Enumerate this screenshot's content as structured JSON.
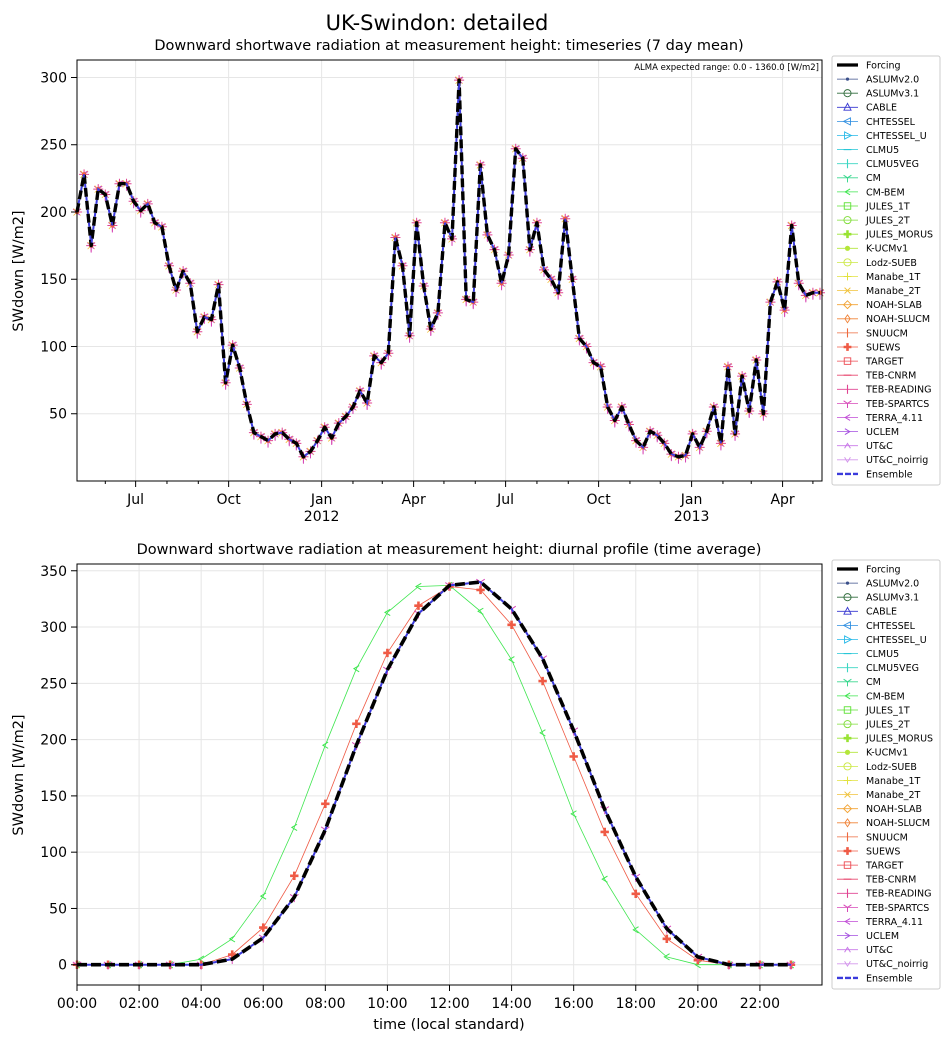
{
  "figure": {
    "title": "UK-Swindon: detailed"
  },
  "chart_data": [
    {
      "type": "line",
      "title": "Downward shortwave radiation at measurement height: timeseries (7 day mean)",
      "xlabel": "",
      "ylabel": "SWdown [W/m2]",
      "annotation": "ALMA expected range: 0.0 - 1360.0 [W/m2]",
      "xlim": [
        "2011-05-04",
        "2013-05-10"
      ],
      "ylim": [
        0,
        313
      ],
      "xticks": [
        {
          "date": "2011-07-01",
          "label": "Jul",
          "sub": ""
        },
        {
          "date": "2011-10-01",
          "label": "Oct",
          "sub": ""
        },
        {
          "date": "2012-01-01",
          "label": "Jan",
          "sub": "2012"
        },
        {
          "date": "2012-04-01",
          "label": "Apr",
          "sub": ""
        },
        {
          "date": "2012-07-01",
          "label": "Jul",
          "sub": ""
        },
        {
          "date": "2012-10-01",
          "label": "Oct",
          "sub": ""
        },
        {
          "date": "2013-01-01",
          "label": "Jan",
          "sub": "2013"
        },
        {
          "date": "2013-04-01",
          "label": "Apr",
          "sub": ""
        }
      ],
      "minor_xticks": [
        "2011-06-01",
        "2011-08-01",
        "2011-09-01",
        "2011-11-01",
        "2011-12-01",
        "2012-02-01",
        "2012-03-01",
        "2012-05-01",
        "2012-06-01",
        "2012-08-01",
        "2012-09-01",
        "2012-11-01",
        "2012-12-01",
        "2013-02-01",
        "2013-03-01",
        "2013-05-01"
      ],
      "yticks": [
        50,
        100,
        150,
        200,
        250,
        300
      ],
      "grid": true,
      "legend_position": "right",
      "x": [
        "2011-05-04",
        "2011-05-11",
        "2011-05-18",
        "2011-05-25",
        "2011-06-01",
        "2011-06-08",
        "2011-06-15",
        "2011-06-22",
        "2011-06-29",
        "2011-07-06",
        "2011-07-13",
        "2011-07-20",
        "2011-07-27",
        "2011-08-03",
        "2011-08-10",
        "2011-08-17",
        "2011-08-24",
        "2011-08-31",
        "2011-09-07",
        "2011-09-14",
        "2011-09-21",
        "2011-09-28",
        "2011-10-05",
        "2011-10-12",
        "2011-10-19",
        "2011-10-26",
        "2011-11-02",
        "2011-11-09",
        "2011-11-16",
        "2011-11-23",
        "2011-11-30",
        "2011-12-07",
        "2011-12-14",
        "2011-12-21",
        "2011-12-28",
        "2012-01-04",
        "2012-01-11",
        "2012-01-18",
        "2012-01-25",
        "2012-02-01",
        "2012-02-08",
        "2012-02-15",
        "2012-02-22",
        "2012-02-29",
        "2012-03-07",
        "2012-03-14",
        "2012-03-21",
        "2012-03-28",
        "2012-04-04",
        "2012-04-11",
        "2012-04-18",
        "2012-04-25",
        "2012-05-02",
        "2012-05-09",
        "2012-05-16",
        "2012-05-23",
        "2012-05-30",
        "2012-06-06",
        "2012-06-13",
        "2012-06-20",
        "2012-06-27",
        "2012-07-04",
        "2012-07-11",
        "2012-07-18",
        "2012-07-25",
        "2012-08-01",
        "2012-08-08",
        "2012-08-15",
        "2012-08-22",
        "2012-08-29",
        "2012-09-05",
        "2012-09-12",
        "2012-09-19",
        "2012-09-26",
        "2012-10-03",
        "2012-10-10",
        "2012-10-17",
        "2012-10-24",
        "2012-10-31",
        "2012-11-07",
        "2012-11-14",
        "2012-11-21",
        "2012-11-28",
        "2012-12-05",
        "2012-12-12",
        "2012-12-19",
        "2012-12-26",
        "2013-01-02",
        "2013-01-09",
        "2013-01-16",
        "2013-01-23",
        "2013-01-30",
        "2013-02-06",
        "2013-02-13",
        "2013-02-20",
        "2013-02-27",
        "2013-03-06",
        "2013-03-13",
        "2013-03-20",
        "2013-03-27",
        "2013-04-03",
        "2013-04-10",
        "2013-04-17",
        "2013-04-24",
        "2013-05-01",
        "2013-05-08"
      ],
      "series": [
        {
          "name": "Forcing",
          "values": [
            200,
            228,
            175,
            217,
            213,
            190,
            221,
            221,
            208,
            201,
            206,
            192,
            189,
            160,
            142,
            156,
            147,
            111,
            122,
            120,
            146,
            73,
            101,
            84,
            57,
            36,
            33,
            30,
            35,
            36,
            31,
            28,
            18,
            22,
            30,
            40,
            32,
            43,
            48,
            55,
            67,
            58,
            93,
            88,
            95,
            181,
            160,
            108,
            192,
            145,
            113,
            125,
            192,
            180,
            298,
            135,
            133,
            235,
            183,
            172,
            147,
            168,
            247,
            240,
            172,
            192,
            157,
            150,
            140,
            195,
            150,
            106,
            100,
            88,
            85,
            55,
            45,
            55,
            42,
            30,
            25,
            37,
            34,
            28,
            20,
            18,
            19,
            35,
            25,
            37,
            55,
            28,
            85,
            35,
            78,
            52,
            90,
            50,
            133,
            148,
            127,
            190,
            147,
            138,
            140,
            140
          ]
        },
        {
          "name": "Ensemble",
          "values": [
            200,
            228,
            175,
            217,
            213,
            190,
            221,
            221,
            208,
            201,
            206,
            192,
            189,
            160,
            142,
            156,
            147,
            111,
            122,
            120,
            146,
            73,
            101,
            84,
            57,
            36,
            33,
            30,
            35,
            36,
            31,
            28,
            18,
            22,
            30,
            40,
            32,
            43,
            48,
            55,
            67,
            58,
            93,
            88,
            95,
            181,
            160,
            108,
            192,
            145,
            113,
            125,
            192,
            180,
            298,
            135,
            133,
            235,
            183,
            172,
            147,
            168,
            247,
            240,
            172,
            192,
            157,
            150,
            140,
            195,
            150,
            106,
            100,
            88,
            85,
            55,
            45,
            55,
            42,
            30,
            25,
            37,
            34,
            28,
            20,
            18,
            19,
            35,
            25,
            37,
            55,
            28,
            85,
            35,
            78,
            52,
            90,
            50,
            133,
            148,
            127,
            190,
            147,
            138,
            140,
            140
          ]
        }
      ]
    },
    {
      "type": "line",
      "title": "Downward shortwave radiation at measurement height: diurnal profile (time average)",
      "xlabel": "time (local standard)",
      "ylabel": "SWdown [W/m2]",
      "xlim": [
        0,
        24
      ],
      "ylim": [
        -18,
        356
      ],
      "xticks": [
        {
          "value": 0,
          "label": "00:00"
        },
        {
          "value": 2,
          "label": "02:00"
        },
        {
          "value": 4,
          "label": "04:00"
        },
        {
          "value": 6,
          "label": "06:00"
        },
        {
          "value": 8,
          "label": "08:00"
        },
        {
          "value": 10,
          "label": "10:00"
        },
        {
          "value": 12,
          "label": "12:00"
        },
        {
          "value": 14,
          "label": "14:00"
        },
        {
          "value": 16,
          "label": "16:00"
        },
        {
          "value": 18,
          "label": "18:00"
        },
        {
          "value": 20,
          "label": "20:00"
        },
        {
          "value": 22,
          "label": "22:00"
        }
      ],
      "yticks": [
        0,
        50,
        100,
        150,
        200,
        250,
        300,
        350
      ],
      "grid": true,
      "legend_position": "right",
      "x": [
        0,
        1,
        2,
        3,
        4,
        5,
        6,
        7,
        8,
        9,
        10,
        11,
        12,
        13,
        14,
        15,
        16,
        17,
        18,
        19,
        20,
        21,
        22,
        23
      ],
      "series": [
        {
          "name": "Forcing",
          "values": [
            0,
            0,
            0,
            0,
            0,
            5,
            24,
            60,
            120,
            195,
            262,
            312,
            337,
            340,
            316,
            272,
            208,
            138,
            78,
            32,
            7,
            0,
            0,
            0
          ]
        },
        {
          "name": "CM-BEM",
          "values": [
            0,
            0,
            0,
            0,
            5,
            23,
            61,
            122,
            195,
            263,
            313,
            336,
            337,
            314,
            271,
            206,
            134,
            76,
            31,
            7,
            0,
            0,
            0,
            0
          ]
        },
        {
          "name": "SUEWS",
          "values": [
            0,
            0,
            0,
            0,
            0,
            9,
            33,
            79,
            143,
            214,
            277,
            319,
            336,
            333,
            302,
            252,
            185,
            118,
            63,
            23,
            4,
            0,
            0,
            0
          ]
        },
        {
          "name": "TEB-SPARTCS",
          "values": [
            0,
            0,
            0,
            0,
            0,
            5,
            24,
            60,
            120,
            195,
            262,
            312,
            337,
            340,
            316,
            272,
            208,
            138,
            78,
            32,
            7,
            0,
            0,
            0
          ]
        },
        {
          "name": "Ensemble",
          "values": [
            0,
            0,
            0,
            0,
            0,
            5,
            24,
            60,
            120,
            195,
            262,
            312,
            337,
            340,
            316,
            272,
            208,
            138,
            78,
            32,
            7,
            0,
            0,
            0
          ]
        }
      ]
    }
  ],
  "legend": [
    {
      "name": "Forcing",
      "color": "#000000",
      "marker": "none",
      "style": "thick"
    },
    {
      "name": "ASLUMv2.0",
      "color": "#3a4f8a",
      "marker": "dot"
    },
    {
      "name": "ASLUMv3.1",
      "color": "#2e6b3a",
      "marker": "circle-open"
    },
    {
      "name": "CABLE",
      "color": "#3535d0",
      "marker": "triangle-up"
    },
    {
      "name": "CHTESSEL",
      "color": "#2d8de0",
      "marker": "triangle-left"
    },
    {
      "name": "CHTESSEL_U",
      "color": "#25b8e8",
      "marker": "triangle-right"
    },
    {
      "name": "CLMU5",
      "color": "#22c6d6",
      "marker": "hline"
    },
    {
      "name": "CLMU5VEG",
      "color": "#3ad6c2",
      "marker": "vline"
    },
    {
      "name": "CM",
      "color": "#3ad88f",
      "marker": "tri-down"
    },
    {
      "name": "CM-BEM",
      "color": "#3ee64f",
      "marker": "caret-left"
    },
    {
      "name": "JULES_1T",
      "color": "#5ce033",
      "marker": "square-open"
    },
    {
      "name": "JULES_2T",
      "color": "#7ddc34",
      "marker": "octagon-open"
    },
    {
      "name": "JULES_MORUS",
      "color": "#99e333",
      "marker": "plus-filled"
    },
    {
      "name": "K-UCMv1",
      "color": "#b4e63a",
      "marker": "star"
    },
    {
      "name": "Lodz-SUEB",
      "color": "#cbe844",
      "marker": "hexagon-open"
    },
    {
      "name": "Manabe_1T",
      "color": "#e2e23f",
      "marker": "plus"
    },
    {
      "name": "Manabe_2T",
      "color": "#f0c23a",
      "marker": "x"
    },
    {
      "name": "NOAH-SLAB",
      "color": "#f2a232",
      "marker": "diamond-open"
    },
    {
      "name": "NOAH-SLUCM",
      "color": "#f08236",
      "marker": "thin-diamond-open"
    },
    {
      "name": "SNUUCM",
      "color": "#ee6a3e",
      "marker": "vline"
    },
    {
      "name": "SUEWS",
      "color": "#ef5a45",
      "marker": "plus-filled"
    },
    {
      "name": "TARGET",
      "color": "#ec4a52",
      "marker": "square-open"
    },
    {
      "name": "TEB-CNRM",
      "color": "#e8486f",
      "marker": "hline"
    },
    {
      "name": "TEB-READING",
      "color": "#e04492",
      "marker": "vline"
    },
    {
      "name": "TEB-SPARTCS",
      "color": "#d748b8",
      "marker": "tri-down"
    },
    {
      "name": "TERRA_4.11",
      "color": "#c04ad6",
      "marker": "caret-left"
    },
    {
      "name": "UCLEM",
      "color": "#a44fe0",
      "marker": "caret-right"
    },
    {
      "name": "UT&C",
      "color": "#c878e8",
      "marker": "caret-up"
    },
    {
      "name": "UT&C_noirrig",
      "color": "#d497ec",
      "marker": "caret-down"
    },
    {
      "name": "Ensemble",
      "color": "#3b3bdc",
      "marker": "none",
      "style": "dashed"
    }
  ]
}
